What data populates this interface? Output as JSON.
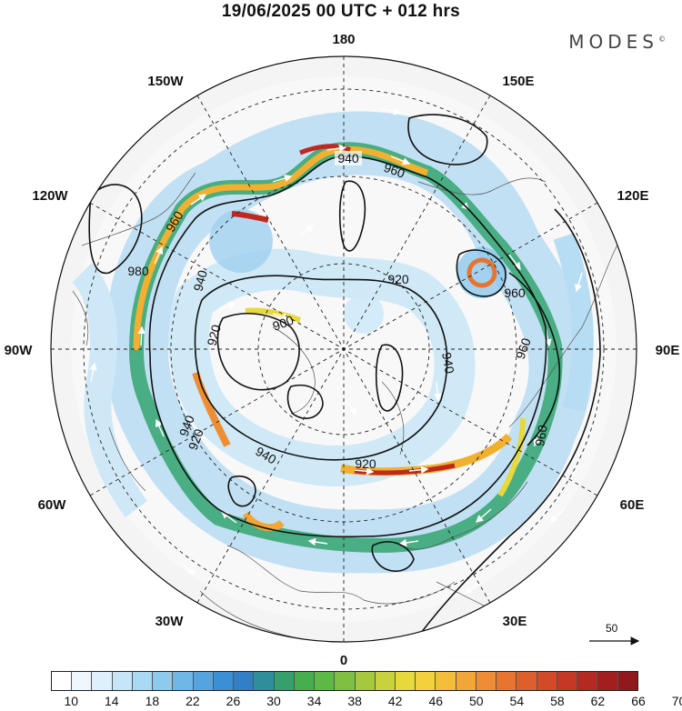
{
  "header": {
    "title": "19/06/2025  00 UTC  + 012 hrs",
    "brand": "MODES",
    "brand_mark": "©"
  },
  "map": {
    "projection": "north-polar-stereographic",
    "longitude_labels": {
      "top": "180",
      "bottom": "0",
      "left": "90W",
      "right": "90E",
      "upper_left_1": "150W",
      "upper_left_2": "120W",
      "upper_right_1": "150E",
      "upper_right_2": "120E",
      "lower_left_1": "60W",
      "lower_left_2": "30W",
      "lower_right_1": "60E",
      "lower_right_2": "30E"
    },
    "contour_labels": [
      "940",
      "960",
      "960",
      "980",
      "940",
      "920",
      "900",
      "920",
      "920",
      "960",
      "960",
      "940",
      "960",
      "940",
      "920",
      "940",
      "960",
      "940"
    ],
    "jet_color": "#f2b030",
    "jet_core_color": "#c0281e"
  },
  "vector_reference": {
    "label": "50"
  },
  "colorbar": {
    "colors": [
      "#ffffff",
      "#eef7fd",
      "#ddf0fb",
      "#c6e6f7",
      "#aad9f3",
      "#8ccaee",
      "#6eb8e8",
      "#53a4e0",
      "#3b8fd4",
      "#2f80c6",
      "#2d8f9c",
      "#36a06c",
      "#46ae4f",
      "#5db844",
      "#7ec142",
      "#a5c83c",
      "#c9d13c",
      "#e6d93b",
      "#f2d13c",
      "#f5be3a",
      "#f3a638",
      "#ee8d33",
      "#e7752f",
      "#de5f2b",
      "#d24a27",
      "#c43824",
      "#b42a22",
      "#a11f1f",
      "#8f1a1d"
    ],
    "tick_labels": [
      "10",
      "14",
      "18",
      "22",
      "26",
      "30",
      "34",
      "38",
      "42",
      "46",
      "50",
      "54",
      "58",
      "62",
      "66",
      "70"
    ]
  }
}
